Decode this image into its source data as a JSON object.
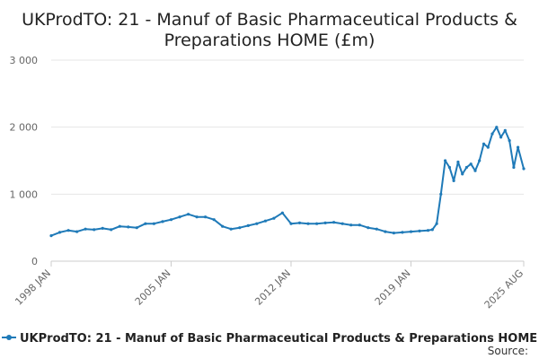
{
  "chart_data": {
    "type": "line",
    "title": "UKProdTO: 21 - Manuf of Basic Pharmaceutical Products & Preparations HOME (£m)",
    "title_lines": [
      "UKProdTO: 21 - Manuf of Basic Pharmaceutical Products &",
      "Preparations HOME (£m)"
    ],
    "xlabel": "",
    "ylabel": "",
    "x_ticks": [
      "1998 JAN",
      "2005 JAN",
      "2012 JAN",
      "2019 JAN",
      "2025 AUG"
    ],
    "y_ticks": [
      0,
      1000,
      2000,
      3000
    ],
    "y_tick_labels": [
      "0",
      "1 000",
      "2 000",
      "3 000"
    ],
    "ylim": [
      0,
      3000
    ],
    "xlim": [
      "1998-01",
      "2025-08"
    ],
    "grid": true,
    "legend_position": "bottom-left",
    "source_label": "Source:",
    "series": [
      {
        "name": "UKProdTO: 21 - Manuf of Basic Pharmaceutical Products & Preparations HOME (£m)",
        "color": "#1f7ab8",
        "x": [
          "1998-01",
          "1998-07",
          "1999-01",
          "1999-07",
          "2000-01",
          "2000-07",
          "2001-01",
          "2001-07",
          "2002-01",
          "2002-07",
          "2003-01",
          "2003-07",
          "2004-01",
          "2004-07",
          "2005-01",
          "2005-07",
          "2006-01",
          "2006-07",
          "2007-01",
          "2007-07",
          "2008-01",
          "2008-07",
          "2009-01",
          "2009-07",
          "2010-01",
          "2010-07",
          "2011-01",
          "2011-07",
          "2012-01",
          "2012-07",
          "2013-01",
          "2013-07",
          "2014-01",
          "2014-07",
          "2015-01",
          "2015-07",
          "2016-01",
          "2016-07",
          "2017-01",
          "2017-07",
          "2018-01",
          "2018-07",
          "2019-01",
          "2019-07",
          "2020-01",
          "2020-04",
          "2020-07",
          "2020-10",
          "2021-01",
          "2021-04",
          "2021-07",
          "2021-10",
          "2022-01",
          "2022-04",
          "2022-07",
          "2022-10",
          "2023-01",
          "2023-04",
          "2023-07",
          "2023-10",
          "2024-01",
          "2024-04",
          "2024-07",
          "2024-10",
          "2025-01",
          "2025-04",
          "2025-08"
        ],
        "values": [
          380,
          430,
          460,
          440,
          480,
          470,
          490,
          470,
          520,
          510,
          500,
          560,
          560,
          590,
          620,
          660,
          700,
          660,
          660,
          620,
          520,
          480,
          500,
          530,
          560,
          600,
          640,
          720,
          560,
          570,
          560,
          560,
          570,
          580,
          560,
          540,
          540,
          500,
          480,
          440,
          420,
          430,
          440,
          450,
          460,
          470,
          560,
          1000,
          1500,
          1400,
          1200,
          1480,
          1300,
          1400,
          1450,
          1350,
          1500,
          1750,
          1700,
          1900,
          2000,
          1850,
          1950,
          1800,
          1400,
          1700,
          1380
        ]
      }
    ]
  }
}
